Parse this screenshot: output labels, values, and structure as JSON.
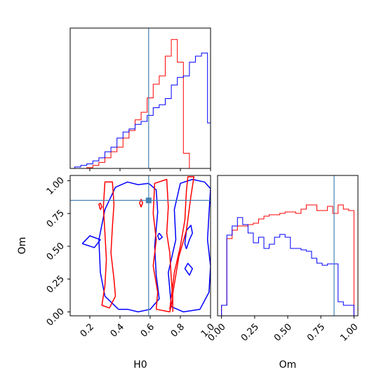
{
  "chart_data": {
    "type": "corner",
    "parameters": [
      "H0",
      "Om"
    ],
    "truth": {
      "H0": 0.59,
      "Om": 0.85
    },
    "colors": {
      "truth": "#4682b4",
      "run_red": "#ff0000",
      "run_blue": "#0000ff"
    },
    "axes": {
      "H0": {
        "xlabel": "H0",
        "xlim": [
          0.07,
          1.0
        ],
        "ticks": [
          0.2,
          0.4,
          0.6,
          0.8,
          1.0
        ],
        "tick_labels": [
          "0.2",
          "0.4",
          "0.6",
          "0.8",
          "1.0"
        ]
      },
      "Om_y": {
        "ylabel": "Om",
        "ylim": [
          -0.03,
          1.04
        ],
        "ticks": [
          0.0,
          0.25,
          0.5,
          0.75,
          1.0
        ],
        "tick_labels": [
          "0.00",
          "0.25",
          "0.50",
          "0.75",
          "1.00"
        ]
      },
      "Om_x": {
        "xlabel": "Om",
        "xlim": [
          -0.03,
          1.03
        ],
        "ticks": [
          0.0,
          0.25,
          0.5,
          0.75,
          1.0
        ],
        "tick_labels": [
          "0.00",
          "0.25",
          "0.50",
          "0.75",
          "1.00"
        ]
      }
    },
    "hist_H0": {
      "edges": [
        0.1,
        0.14,
        0.18,
        0.22,
        0.26,
        0.3,
        0.34,
        0.38,
        0.42,
        0.46,
        0.5,
        0.54,
        0.58,
        0.62,
        0.66,
        0.7,
        0.74,
        0.78,
        0.82,
        0.86,
        0.9,
        0.94,
        0.98,
        1.0
      ],
      "ylim": [
        0,
        185
      ],
      "series": [
        {
          "name": "",
          "color": "#ff0000",
          "counts": [
            0,
            0,
            1,
            4,
            8,
            14,
            22,
            28,
            40,
            50,
            64,
            74,
            93,
            111,
            122,
            148,
            170,
            140,
            20,
            0,
            0,
            0,
            0
          ]
        },
        {
          "name": "",
          "color": "#0000ff",
          "counts": [
            2,
            4,
            6,
            10,
            14,
            22,
            28,
            40,
            48,
            52,
            58,
            62,
            70,
            80,
            84,
            92,
            110,
            120,
            122,
            140,
            148,
            152,
            60
          ]
        }
      ]
    },
    "hist_Om": {
      "edges": [
        0.0,
        0.04,
        0.08,
        0.12,
        0.16,
        0.2,
        0.24,
        0.28,
        0.32,
        0.36,
        0.4,
        0.44,
        0.48,
        0.52,
        0.56,
        0.6,
        0.64,
        0.68,
        0.72,
        0.76,
        0.8,
        0.84,
        0.88,
        0.92,
        0.96,
        1.0
      ],
      "ylim": [
        0,
        200
      ],
      "series": [
        {
          "name": "",
          "color": "#ff0000",
          "counts": [
            15,
            110,
            122,
            128,
            128,
            130,
            132,
            138,
            142,
            144,
            144,
            146,
            148,
            148,
            146,
            152,
            158,
            158,
            150,
            150,
            156,
            146,
            158,
            152,
            150
          ]
        },
        {
          "name": "",
          "color": "#0000ff",
          "counts": [
            15,
            115,
            128,
            140,
            130,
            118,
            104,
            112,
            96,
            102,
            112,
            116,
            112,
            96,
            96,
            94,
            92,
            82,
            75,
            72,
            74,
            74,
            20,
            15,
            15
          ]
        }
      ]
    },
    "contours": {
      "red": [
        [
          [
            0.37,
            0.12
          ],
          [
            0.36,
            0.25
          ],
          [
            0.34,
            0.45
          ],
          [
            0.35,
            0.65
          ],
          [
            0.36,
            0.82
          ],
          [
            0.35,
            0.99
          ],
          [
            0.3,
            0.99
          ],
          [
            0.29,
            0.8
          ],
          [
            0.3,
            0.6
          ],
          [
            0.31,
            0.4
          ],
          [
            0.3,
            0.2
          ],
          [
            0.28,
            0.05
          ],
          [
            0.33,
            0.03
          ],
          [
            0.37,
            0.12
          ]
        ],
        [
          [
            0.64,
            0.02
          ],
          [
            0.65,
            0.15
          ],
          [
            0.62,
            0.35
          ],
          [
            0.64,
            0.55
          ],
          [
            0.62,
            0.75
          ],
          [
            0.63,
            0.98
          ],
          [
            0.71,
            1.01
          ],
          [
            0.72,
            0.8
          ],
          [
            0.71,
            0.6
          ],
          [
            0.73,
            0.45
          ],
          [
            0.74,
            0.25
          ],
          [
            0.75,
            0.1
          ],
          [
            0.73,
            0.0
          ],
          [
            0.64,
            0.02
          ]
        ],
        [
          [
            0.73,
            0.02
          ],
          [
            0.76,
            0.3
          ],
          [
            0.8,
            0.5
          ],
          [
            0.83,
            0.7
          ],
          [
            0.84,
            0.92
          ],
          [
            0.85,
            1.03
          ],
          [
            0.89,
            1.03
          ],
          [
            0.87,
            0.88
          ],
          [
            0.84,
            0.62
          ],
          [
            0.79,
            0.42
          ],
          [
            0.75,
            0.14
          ],
          [
            0.75,
            0.0
          ]
        ],
        [
          [
            0.27,
            0.83
          ],
          [
            0.28,
            0.8
          ],
          [
            0.27,
            0.78
          ],
          [
            0.26,
            0.82
          ],
          [
            0.27,
            0.83
          ]
        ],
        [
          [
            0.54,
            0.86
          ],
          [
            0.55,
            0.83
          ],
          [
            0.54,
            0.8
          ],
          [
            0.53,
            0.83
          ],
          [
            0.54,
            0.86
          ]
        ]
      ],
      "blue": [
        [
          [
            0.39,
            0.02
          ],
          [
            0.3,
            0.12
          ],
          [
            0.27,
            0.3
          ],
          [
            0.26,
            0.55
          ],
          [
            0.3,
            0.78
          ],
          [
            0.37,
            0.95
          ],
          [
            0.45,
            0.99
          ],
          [
            0.52,
            0.97
          ],
          [
            0.59,
            0.98
          ],
          [
            0.64,
            0.93
          ],
          [
            0.65,
            0.76
          ],
          [
            0.63,
            0.5
          ],
          [
            0.64,
            0.28
          ],
          [
            0.66,
            0.1
          ],
          [
            0.6,
            0.02
          ],
          [
            0.52,
            0.0
          ],
          [
            0.45,
            0.02
          ],
          [
            0.39,
            0.02
          ]
        ],
        [
          [
            0.74,
            0.04
          ],
          [
            0.72,
            0.3
          ],
          [
            0.77,
            0.55
          ],
          [
            0.76,
            0.78
          ],
          [
            0.8,
            0.98
          ],
          [
            0.88,
            1.01
          ],
          [
            0.96,
            0.99
          ],
          [
            1.0,
            0.94
          ],
          [
            0.99,
            0.75
          ],
          [
            0.98,
            0.55
          ],
          [
            1.0,
            0.35
          ],
          [
            0.99,
            0.15
          ],
          [
            0.93,
            0.02
          ],
          [
            0.82,
            0.0
          ],
          [
            0.74,
            0.04
          ]
        ],
        [
          [
            0.15,
            0.52
          ],
          [
            0.2,
            0.58
          ],
          [
            0.27,
            0.55
          ],
          [
            0.23,
            0.49
          ],
          [
            0.15,
            0.52
          ]
        ],
        [
          [
            0.84,
            0.48
          ],
          [
            0.86,
            0.55
          ],
          [
            0.88,
            0.6
          ],
          [
            0.87,
            0.66
          ],
          [
            0.84,
            0.62
          ],
          [
            0.83,
            0.52
          ],
          [
            0.84,
            0.48
          ]
        ],
        [
          [
            0.83,
            0.33
          ],
          [
            0.86,
            0.28
          ],
          [
            0.88,
            0.33
          ],
          [
            0.85,
            0.37
          ],
          [
            0.83,
            0.33
          ]
        ],
        [
          [
            0.66,
            0.6
          ],
          [
            0.68,
            0.57
          ],
          [
            0.66,
            0.55
          ],
          [
            0.65,
            0.58
          ],
          [
            0.66,
            0.6
          ]
        ]
      ]
    }
  }
}
